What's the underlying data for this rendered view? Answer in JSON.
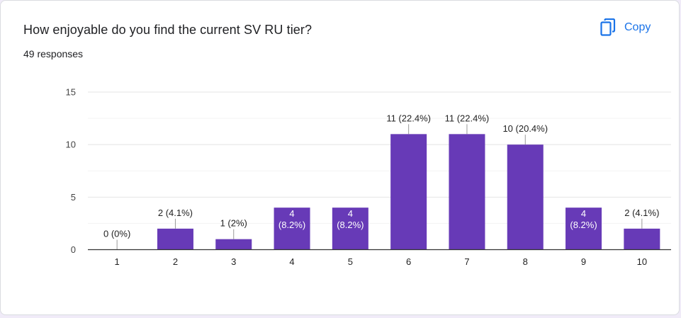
{
  "question": {
    "title": "How enjoyable do you find the current SV RU tier?",
    "responses_label": "49 responses"
  },
  "actions": {
    "copy_label": "Copy",
    "copy_icon": "copy-icon"
  },
  "colors": {
    "bar": "#673ab7",
    "accent": "#1a73e8",
    "text": "#202124",
    "gridline": "#e8e8e8",
    "axis": "#333333"
  },
  "chart_data": {
    "type": "bar",
    "categories": [
      "1",
      "2",
      "3",
      "4",
      "5",
      "6",
      "7",
      "8",
      "9",
      "10"
    ],
    "values": [
      0,
      2,
      1,
      4,
      4,
      11,
      11,
      10,
      4,
      2
    ],
    "data_labels": [
      "0 (0%)",
      "2 (4.1%)",
      "1 (2%)",
      "4 (8.2%)",
      "4 (8.2%)",
      "11 (22.4%)",
      "11 (22.4%)",
      "10 (20.4%)",
      "4 (8.2%)",
      "2 (4.1%)"
    ],
    "label_inside": [
      false,
      false,
      false,
      true,
      true,
      false,
      false,
      false,
      true,
      false
    ],
    "ylim": [
      0,
      15
    ],
    "yticks": [
      0,
      5,
      10,
      15
    ],
    "grid": true,
    "legend": "none"
  }
}
